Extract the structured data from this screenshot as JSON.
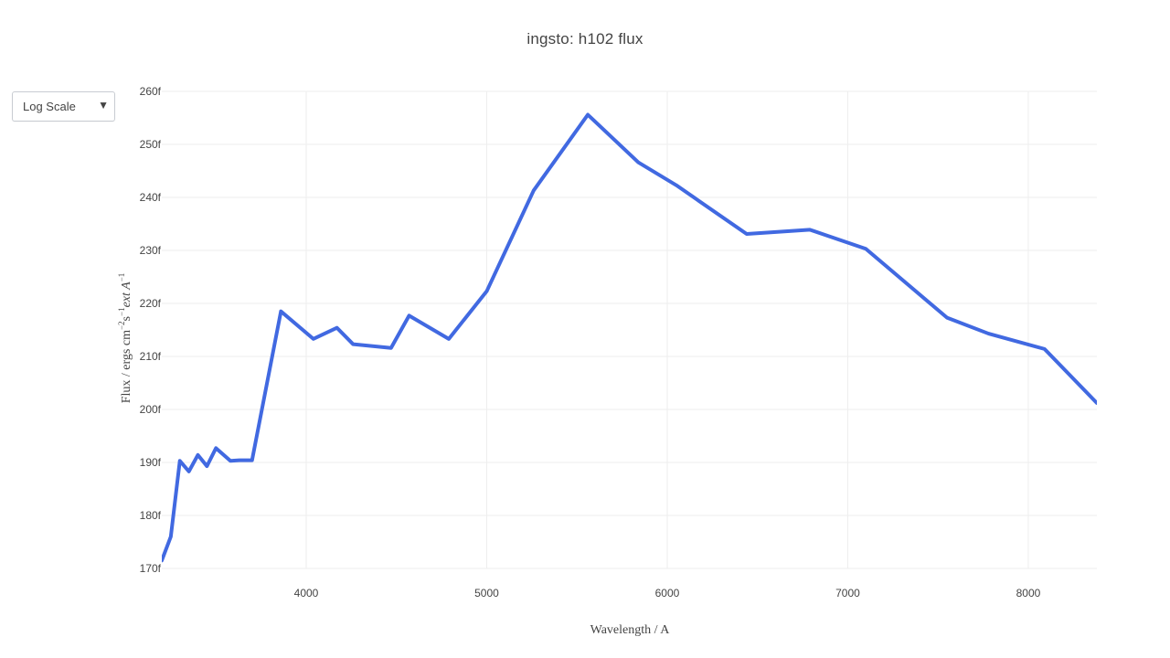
{
  "title": "ingsto: h102 flux",
  "controls": {
    "scale_dropdown": {
      "selected": "Log Scale",
      "caret": "▼",
      "caret_icon": "caret-down-icon"
    }
  },
  "chart_data": {
    "type": "line",
    "title": "ingsto: h102 flux",
    "xlabel": "Wavelength / A",
    "ylabel_parts": {
      "prefix": "Flux / ergs cm",
      "exp1": "−2",
      "mid": "s",
      "exp2": "−1",
      "tail": "ext A",
      "exp3": "−1"
    },
    "xlim": [
      3200,
      8380
    ],
    "ylim": [
      170,
      260
    ],
    "y_unit_suffix": "f",
    "x_ticks": [
      4000,
      5000,
      6000,
      7000,
      8000
    ],
    "x_tick_labels": [
      "4000",
      "5000",
      "6000",
      "7000",
      "8000"
    ],
    "y_ticks": [
      170,
      180,
      190,
      200,
      210,
      220,
      230,
      240,
      250,
      260
    ],
    "y_tick_labels": [
      "170f",
      "180f",
      "190f",
      "200f",
      "210f",
      "220f",
      "230f",
      "240f",
      "250f",
      "260f"
    ],
    "grid": true,
    "line_color": "#4169E1",
    "series": [
      {
        "x": [
          3200,
          3250,
          3300,
          3350,
          3400,
          3450,
          3500,
          3580,
          3630,
          3700,
          3860,
          4040,
          4170,
          4260,
          4470,
          4570,
          4790,
          5000,
          5260,
          5560,
          5840,
          6050,
          6440,
          6790,
          7100,
          7550,
          7780,
          8090,
          8380
        ],
        "y": [
          171.5,
          176,
          190.3,
          188.3,
          191.4,
          189.3,
          192.7,
          190.3,
          190.4,
          190.4,
          218.5,
          213.3,
          215.4,
          212.3,
          211.6,
          217.7,
          213.3,
          222.3,
          241.3,
          255.6,
          246.6,
          242.3,
          233.1,
          233.9,
          230.3,
          217.3,
          214.3,
          211.4,
          201.2
        ]
      }
    ]
  }
}
